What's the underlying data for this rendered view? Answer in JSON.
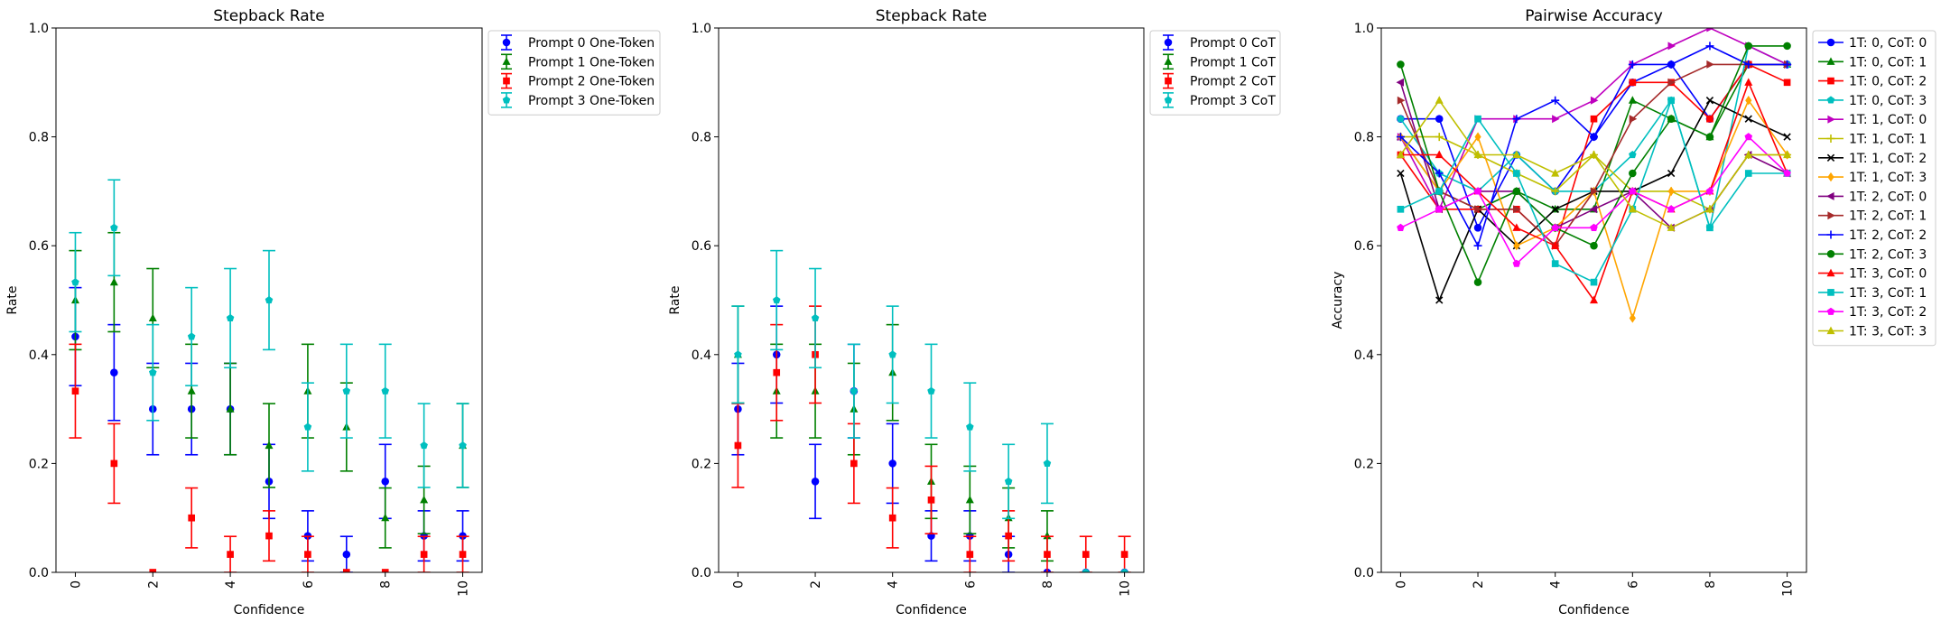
{
  "chart_data": [
    {
      "type": "scatter",
      "title": "Stepback Rate",
      "xlabel": "Confidence",
      "ylabel": "Rate",
      "xlim": [
        -0.5,
        10.5
      ],
      "ylim": [
        0,
        1
      ],
      "xticks": [
        "0",
        "2",
        "4",
        "6",
        "8",
        "10"
      ],
      "yticks": [
        "0.0",
        "0.2",
        "0.4",
        "0.6",
        "0.8",
        "1.0"
      ],
      "legend_position": "outside-top-right",
      "error_bars": true,
      "series": [
        {
          "name": "Prompt 0 One-Token",
          "color": "#0000ff",
          "marker": "circle",
          "values": [
            0.433,
            0.367,
            0.3,
            0.3,
            0.3,
            0.167,
            0.067,
            0.033,
            0.167,
            0.067,
            0.067
          ],
          "err": [
            0.09,
            0.088,
            0.084,
            0.084,
            0.084,
            0.068,
            0.046,
            0.033,
            0.068,
            0.046,
            0.046
          ]
        },
        {
          "name": "Prompt 1 One-Token",
          "color": "#008000",
          "marker": "triangle",
          "values": [
            0.5,
            0.533,
            0.467,
            0.333,
            0.3,
            0.233,
            0.333,
            0.267,
            0.1,
            0.133,
            0.233
          ],
          "err": [
            0.091,
            0.091,
            0.091,
            0.086,
            0.084,
            0.077,
            0.086,
            0.081,
            0.055,
            0.062,
            0.077
          ]
        },
        {
          "name": "Prompt 2 One-Token",
          "color": "#ff0000",
          "marker": "square",
          "values": [
            0.333,
            0.2,
            0.0,
            0.1,
            0.033,
            0.067,
            0.033,
            0.0,
            0.0,
            0.033,
            0.033
          ],
          "err": [
            0.086,
            0.073,
            0.0,
            0.055,
            0.033,
            0.046,
            0.033,
            0.0,
            0.0,
            0.033,
            0.033
          ]
        },
        {
          "name": "Prompt 3 One-Token",
          "color": "#00bfbf",
          "marker": "pentagon",
          "values": [
            0.533,
            0.633,
            0.367,
            0.433,
            0.467,
            0.5,
            0.267,
            0.333,
            0.333,
            0.233,
            0.233
          ],
          "err": [
            0.091,
            0.088,
            0.088,
            0.09,
            0.091,
            0.091,
            0.081,
            0.086,
            0.086,
            0.077,
            0.077
          ]
        }
      ]
    },
    {
      "type": "scatter",
      "title": "Stepback Rate",
      "xlabel": "Confidence",
      "ylabel": "Rate",
      "xlim": [
        -0.5,
        10.5
      ],
      "ylim": [
        0,
        1
      ],
      "xticks": [
        "0",
        "2",
        "4",
        "6",
        "8",
        "10"
      ],
      "yticks": [
        "0.0",
        "0.2",
        "0.4",
        "0.6",
        "0.8",
        "1.0"
      ],
      "legend_position": "outside-top-right",
      "error_bars": true,
      "series": [
        {
          "name": "Prompt 0 CoT",
          "color": "#0000ff",
          "marker": "circle",
          "values": [
            0.3,
            0.4,
            0.167,
            0.333,
            0.2,
            0.067,
            0.067,
            0.033,
            0.0,
            0.0,
            0.0
          ],
          "err": [
            0.084,
            0.089,
            0.068,
            0.086,
            0.073,
            0.046,
            0.046,
            0.033,
            0.0,
            0.0,
            0.0
          ]
        },
        {
          "name": "Prompt 1 CoT",
          "color": "#008000",
          "marker": "triangle",
          "values": [
            0.4,
            0.333,
            0.333,
            0.3,
            0.367,
            0.167,
            0.133,
            0.1,
            0.067,
            0.0,
            0.0
          ],
          "err": [
            0.089,
            0.086,
            0.086,
            0.084,
            0.088,
            0.068,
            0.062,
            0.055,
            0.046,
            0.0,
            0.0
          ]
        },
        {
          "name": "Prompt 2 CoT",
          "color": "#ff0000",
          "marker": "square",
          "values": [
            0.233,
            0.367,
            0.4,
            0.2,
            0.1,
            0.133,
            0.033,
            0.067,
            0.033,
            0.033,
            0.033
          ],
          "err": [
            0.077,
            0.088,
            0.089,
            0.073,
            0.055,
            0.062,
            0.033,
            0.046,
            0.033,
            0.033,
            0.033
          ]
        },
        {
          "name": "Prompt 3 CoT",
          "color": "#00bfbf",
          "marker": "pentagon",
          "values": [
            0.4,
            0.5,
            0.467,
            0.333,
            0.4,
            0.333,
            0.267,
            0.167,
            0.2,
            0.0,
            0.0
          ],
          "err": [
            0.089,
            0.091,
            0.091,
            0.086,
            0.089,
            0.086,
            0.081,
            0.068,
            0.073,
            0.0,
            0.0
          ]
        }
      ]
    },
    {
      "type": "line",
      "title": "Pairwise Accuracy",
      "xlabel": "Confidence",
      "ylabel": "Accuracy",
      "x": [
        0,
        1,
        2,
        3,
        4,
        5,
        6,
        7,
        8,
        9,
        10
      ],
      "xlim": [
        -0.5,
        10.5
      ],
      "ylim": [
        0,
        1
      ],
      "xticks": [
        "0",
        "2",
        "4",
        "6",
        "8",
        "10"
      ],
      "yticks": [
        "0.0",
        "0.2",
        "0.4",
        "0.6",
        "0.8",
        "1.0"
      ],
      "legend_position": "outside-top-right",
      "series": [
        {
          "name": "1T: 0, CoT: 0",
          "color": "#0000ff",
          "marker": "circle",
          "values": [
            0.833,
            0.833,
            0.633,
            0.767,
            0.7,
            0.8,
            0.9,
            0.933,
            0.833,
            0.933,
            0.933
          ]
        },
        {
          "name": "1T: 0, CoT: 1",
          "color": "#008000",
          "marker": "triangle",
          "values": [
            0.8,
            0.7,
            0.667,
            0.7,
            0.667,
            0.667,
            0.867,
            0.833,
            0.8,
            0.933,
            0.933
          ]
        },
        {
          "name": "1T: 0, CoT: 2",
          "color": "#ff0000",
          "marker": "square",
          "values": [
            0.767,
            0.667,
            0.667,
            0.667,
            0.6,
            0.833,
            0.9,
            0.9,
            0.833,
            0.933,
            0.9
          ]
        },
        {
          "name": "1T: 0, CoT: 3",
          "color": "#00bfbf",
          "marker": "pentagon",
          "values": [
            0.833,
            0.733,
            0.7,
            0.767,
            0.7,
            0.7,
            0.767,
            0.867,
            0.633,
            0.967,
            0.933
          ]
        },
        {
          "name": "1T: 1, CoT: 0",
          "color": "#bf00bf",
          "marker": "tri-right",
          "values": [
            0.8,
            0.667,
            0.833,
            0.833,
            0.833,
            0.867,
            0.933,
            0.967,
            1.0,
            0.967,
            0.933
          ]
        },
        {
          "name": "1T: 1, CoT: 1",
          "color": "#bfbf00",
          "marker": "plus",
          "values": [
            0.8,
            0.8,
            0.767,
            0.733,
            0.7,
            0.767,
            0.7,
            0.7,
            0.667,
            0.767,
            0.767
          ]
        },
        {
          "name": "1T: 1, CoT: 2",
          "color": "#000000",
          "marker": "x",
          "values": [
            0.733,
            0.5,
            0.667,
            0.6,
            0.667,
            0.7,
            0.7,
            0.733,
            0.867,
            0.833,
            0.8
          ]
        },
        {
          "name": "1T: 1, CoT: 3",
          "color": "#ffa500",
          "marker": "diamond",
          "values": [
            0.8,
            0.7,
            0.8,
            0.6,
            0.633,
            0.7,
            0.467,
            0.7,
            0.7,
            0.867,
            0.767
          ]
        },
        {
          "name": "1T: 2, CoT: 0",
          "color": "#800080",
          "marker": "tri-left",
          "values": [
            0.9,
            0.667,
            0.7,
            0.7,
            0.633,
            0.667,
            0.7,
            0.633,
            0.667,
            0.767,
            0.733
          ]
        },
        {
          "name": "1T: 2, CoT: 1",
          "color": "#a52a2a",
          "marker": "tri-right",
          "values": [
            0.867,
            0.7,
            0.667,
            0.667,
            0.6,
            0.7,
            0.833,
            0.9,
            0.933,
            0.933,
            0.933
          ]
        },
        {
          "name": "1T: 2, CoT: 2",
          "color": "#0000ff",
          "marker": "plus",
          "values": [
            0.8,
            0.733,
            0.6,
            0.833,
            0.867,
            0.8,
            0.933,
            0.933,
            0.967,
            0.933,
            0.933
          ]
        },
        {
          "name": "1T: 2, CoT: 3",
          "color": "#008000",
          "marker": "circle",
          "values": [
            0.933,
            0.7,
            0.533,
            0.7,
            0.633,
            0.6,
            0.733,
            0.833,
            0.8,
            0.967,
            0.967
          ]
        },
        {
          "name": "1T: 3, CoT: 0",
          "color": "#ff0000",
          "marker": "triangle",
          "values": [
            0.767,
            0.767,
            0.7,
            0.633,
            0.6,
            0.5,
            0.7,
            0.667,
            0.7,
            0.9,
            0.733
          ]
        },
        {
          "name": "1T: 3, CoT: 1",
          "color": "#00bfbf",
          "marker": "square",
          "values": [
            0.667,
            0.7,
            0.833,
            0.733,
            0.567,
            0.533,
            0.667,
            0.867,
            0.633,
            0.733,
            0.733
          ]
        },
        {
          "name": "1T: 3, CoT: 2",
          "color": "#ff00ff",
          "marker": "pentagon",
          "values": [
            0.633,
            0.667,
            0.7,
            0.567,
            0.633,
            0.633,
            0.7,
            0.667,
            0.7,
            0.8,
            0.733
          ]
        },
        {
          "name": "1T: 3, CoT: 3",
          "color": "#bfbf00",
          "marker": "triangle",
          "values": [
            0.767,
            0.867,
            0.767,
            0.767,
            0.733,
            0.767,
            0.667,
            0.633,
            0.667,
            0.767,
            0.767
          ]
        }
      ]
    }
  ]
}
